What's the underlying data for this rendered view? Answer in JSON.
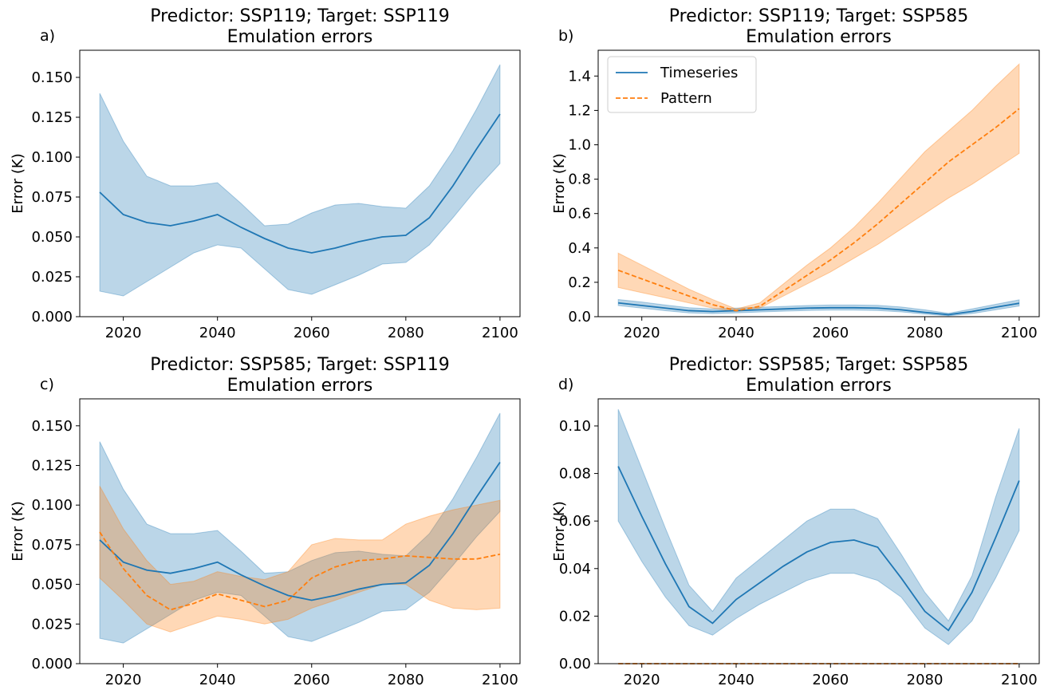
{
  "chart_data": [
    {
      "type": "line",
      "panel": "a)",
      "title": "Predictor: SSP119; Target: SSP119",
      "subtitle": "Emulation errors",
      "ylabel": "Error (K)",
      "x": [
        2015,
        2020,
        2025,
        2030,
        2035,
        2040,
        2045,
        2050,
        2055,
        2060,
        2065,
        2070,
        2075,
        2080,
        2085,
        2090,
        2095,
        2100
      ],
      "xlim": [
        2010.75,
        2104.25
      ],
      "xticks": [
        2020,
        2040,
        2060,
        2080,
        2100
      ],
      "ylim": [
        0,
        0.167
      ],
      "yticks": [
        {
          "value": 0,
          "label": "0.000"
        },
        0.025,
        {
          "value": 0.05,
          "label": "0.050"
        },
        0.075,
        {
          "value": 0.1,
          "label": "0.100"
        },
        0.125,
        {
          "value": 0.15,
          "label": "0.150"
        }
      ],
      "series": [
        {
          "color": "#1f77b4",
          "dash": false,
          "values": [
            0.078,
            0.064,
            0.059,
            0.057,
            0.06,
            0.064,
            0.056,
            0.049,
            0.043,
            0.04,
            0.043,
            0.047,
            0.05,
            0.051,
            0.062,
            0.082,
            0.105,
            0.127
          ],
          "lower": [
            0.016,
            0.013,
            0.022,
            0.031,
            0.04,
            0.045,
            0.043,
            0.03,
            0.017,
            0.014,
            0.02,
            0.026,
            0.033,
            0.034,
            0.045,
            0.062,
            0.08,
            0.096
          ],
          "upper": [
            0.14,
            0.11,
            0.088,
            0.082,
            0.082,
            0.084,
            0.071,
            0.057,
            0.058,
            0.065,
            0.07,
            0.071,
            0.069,
            0.068,
            0.082,
            0.104,
            0.13,
            0.158
          ]
        }
      ]
    },
    {
      "type": "line",
      "panel": "b)",
      "title": "Predictor: SSP119; Target: SSP585",
      "subtitle": "Emulation errors",
      "ylabel": "Error (K)",
      "legend": "upper left",
      "x": [
        2015,
        2020,
        2025,
        2030,
        2035,
        2040,
        2045,
        2050,
        2055,
        2060,
        2065,
        2070,
        2075,
        2080,
        2085,
        2090,
        2095,
        2100
      ],
      "xlim": [
        2010.75,
        2104.25
      ],
      "xticks": [
        2020,
        2040,
        2060,
        2080,
        2100
      ],
      "ylim": [
        0,
        1.55
      ],
      "yticks": [
        {
          "value": 0,
          "label": "0.0"
        },
        0.2,
        0.4,
        0.6,
        0.8,
        {
          "value": 1,
          "label": "1.0"
        },
        1.2,
        1.4
      ],
      "series": [
        {
          "name": "Timeseries",
          "color": "#1f77b4",
          "dash": false,
          "values": [
            0.08,
            0.065,
            0.05,
            0.035,
            0.03,
            0.035,
            0.04,
            0.045,
            0.05,
            0.052,
            0.052,
            0.05,
            0.04,
            0.025,
            0.012,
            0.03,
            0.055,
            0.078
          ],
          "lower": [
            0.065,
            0.05,
            0.035,
            0.022,
            0.018,
            0.022,
            0.027,
            0.032,
            0.036,
            0.038,
            0.038,
            0.036,
            0.028,
            0.015,
            0.005,
            0.018,
            0.04,
            0.062
          ],
          "upper": [
            0.1,
            0.085,
            0.068,
            0.052,
            0.045,
            0.05,
            0.055,
            0.06,
            0.065,
            0.068,
            0.068,
            0.066,
            0.056,
            0.04,
            0.02,
            0.045,
            0.072,
            0.098
          ]
        },
        {
          "name": "Pattern",
          "color": "#ff7f0e",
          "dash": true,
          "values": [
            0.27,
            0.22,
            0.17,
            0.12,
            0.07,
            0.035,
            0.06,
            0.15,
            0.24,
            0.33,
            0.43,
            0.54,
            0.66,
            0.78,
            0.9,
            1.0,
            1.1,
            1.21
          ],
          "lower": [
            0.17,
            0.14,
            0.11,
            0.08,
            0.05,
            0.03,
            0.05,
            0.12,
            0.19,
            0.26,
            0.34,
            0.42,
            0.51,
            0.6,
            0.69,
            0.77,
            0.86,
            0.95
          ],
          "upper": [
            0.37,
            0.3,
            0.23,
            0.16,
            0.1,
            0.045,
            0.08,
            0.19,
            0.3,
            0.4,
            0.52,
            0.66,
            0.81,
            0.96,
            1.08,
            1.2,
            1.34,
            1.47
          ]
        }
      ]
    },
    {
      "type": "line",
      "panel": "c)",
      "title": "Predictor: SSP585; Target: SSP119",
      "subtitle": "Emulation errors",
      "ylabel": "Error (K)",
      "x": [
        2015,
        2020,
        2025,
        2030,
        2035,
        2040,
        2045,
        2050,
        2055,
        2060,
        2065,
        2070,
        2075,
        2080,
        2085,
        2090,
        2095,
        2100
      ],
      "xlim": [
        2010.75,
        2104.25
      ],
      "xticks": [
        2020,
        2040,
        2060,
        2080,
        2100
      ],
      "ylim": [
        0,
        0.167
      ],
      "yticks": [
        {
          "value": 0,
          "label": "0.000"
        },
        0.025,
        {
          "value": 0.05,
          "label": "0.050"
        },
        0.075,
        {
          "value": 0.1,
          "label": "0.100"
        },
        0.125,
        {
          "value": 0.15,
          "label": "0.150"
        }
      ],
      "series": [
        {
          "color": "#1f77b4",
          "dash": false,
          "values": [
            0.078,
            0.064,
            0.059,
            0.057,
            0.06,
            0.064,
            0.056,
            0.049,
            0.043,
            0.04,
            0.043,
            0.047,
            0.05,
            0.051,
            0.062,
            0.082,
            0.105,
            0.127
          ],
          "lower": [
            0.016,
            0.013,
            0.022,
            0.031,
            0.04,
            0.045,
            0.043,
            0.03,
            0.017,
            0.014,
            0.02,
            0.026,
            0.033,
            0.034,
            0.045,
            0.062,
            0.08,
            0.096
          ],
          "upper": [
            0.14,
            0.11,
            0.088,
            0.082,
            0.082,
            0.084,
            0.071,
            0.057,
            0.058,
            0.065,
            0.07,
            0.071,
            0.069,
            0.068,
            0.082,
            0.104,
            0.13,
            0.158
          ]
        },
        {
          "color": "#ff7f0e",
          "dash": true,
          "values": [
            0.083,
            0.06,
            0.043,
            0.034,
            0.038,
            0.044,
            0.04,
            0.036,
            0.04,
            0.054,
            0.061,
            0.065,
            0.066,
            0.068,
            0.067,
            0.066,
            0.066,
            0.069
          ],
          "lower": [
            0.054,
            0.04,
            0.025,
            0.02,
            0.025,
            0.03,
            0.028,
            0.025,
            0.028,
            0.035,
            0.04,
            0.045,
            0.05,
            0.05,
            0.04,
            0.035,
            0.034,
            0.035
          ],
          "upper": [
            0.112,
            0.085,
            0.065,
            0.05,
            0.052,
            0.058,
            0.055,
            0.053,
            0.058,
            0.075,
            0.079,
            0.078,
            0.078,
            0.088,
            0.093,
            0.097,
            0.1,
            0.103
          ]
        }
      ]
    },
    {
      "type": "line",
      "panel": "d)",
      "title": "Predictor: SSP585; Target: SSP585",
      "subtitle": "Emulation errors",
      "ylabel": "Error (K)",
      "x": [
        2015,
        2020,
        2025,
        2030,
        2035,
        2040,
        2045,
        2050,
        2055,
        2060,
        2065,
        2070,
        2075,
        2080,
        2085,
        2090,
        2095,
        2100
      ],
      "xlim": [
        2010.75,
        2104.25
      ],
      "xticks": [
        2020,
        2040,
        2060,
        2080,
        2100
      ],
      "ylim": [
        0,
        0.1114
      ],
      "yticks": [
        {
          "value": 0,
          "label": "0.00"
        },
        0.02,
        0.04,
        0.06,
        0.08,
        {
          "value": 0.1,
          "label": "0.10"
        }
      ],
      "series": [
        {
          "color": "#1f77b4",
          "dash": false,
          "values": [
            0.083,
            0.062,
            0.042,
            0.024,
            0.017,
            0.027,
            0.034,
            0.041,
            0.047,
            0.051,
            0.052,
            0.049,
            0.036,
            0.022,
            0.014,
            0.03,
            0.053,
            0.077
          ],
          "lower": [
            0.06,
            0.043,
            0.028,
            0.016,
            0.012,
            0.019,
            0.025,
            0.03,
            0.035,
            0.038,
            0.038,
            0.035,
            0.028,
            0.015,
            0.008,
            0.018,
            0.036,
            0.056
          ],
          "upper": [
            0.107,
            0.082,
            0.057,
            0.033,
            0.022,
            0.036,
            0.044,
            0.052,
            0.06,
            0.065,
            0.065,
            0.061,
            0.046,
            0.03,
            0.018,
            0.037,
            0.07,
            0.099
          ]
        },
        {
          "color": "#ff7f0e",
          "dash": true,
          "values": [
            0,
            0,
            0,
            0,
            0,
            0,
            0,
            0,
            0,
            0,
            0,
            0,
            0,
            0,
            0,
            0,
            0,
            0
          ]
        }
      ]
    }
  ]
}
